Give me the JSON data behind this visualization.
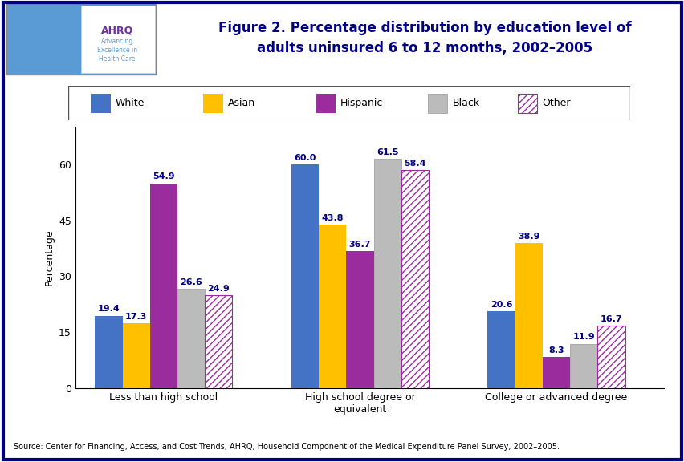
{
  "title": "Figure 2. Percentage distribution by education level of\nadults uninsured 6 to 12 months, 2002–2005",
  "ylabel": "Percentage",
  "source": "Source: Center for Financing, Access, and Cost Trends, AHRQ, Household Component of the Medical Expenditure Panel Survey, 2002–2005.",
  "categories": [
    "Less than high school",
    "High school degree or\nequivalent",
    "College or advanced degree"
  ],
  "groups": [
    "White",
    "Asian",
    "Hispanic",
    "Black",
    "Other"
  ],
  "values": [
    [
      19.4,
      17.3,
      54.9,
      26.6,
      24.9
    ],
    [
      60.0,
      43.8,
      36.7,
      61.5,
      58.4
    ],
    [
      20.6,
      38.9,
      8.3,
      11.9,
      16.7
    ]
  ],
  "colors": [
    "#4472C4",
    "#FFC000",
    "#9B2C9E",
    "#BBBBBB",
    "#FFFFFF"
  ],
  "hatch_colors": [
    "none",
    "none",
    "none",
    "none",
    "#9B2C9E"
  ],
  "hatches": [
    "",
    "",
    "",
    "",
    "////"
  ],
  "bar_edgecolors": [
    "none",
    "none",
    "none",
    "#999999",
    "#9B2C9E"
  ],
  "bar_width": 0.14,
  "ylim": [
    0,
    70
  ],
  "yticks": [
    0,
    15,
    30,
    45,
    60
  ],
  "background_color": "#FFFFFF",
  "border_color": "#000080",
  "title_color": "#000080",
  "title_fontsize": 12,
  "tick_fontsize": 9,
  "value_fontsize": 8,
  "value_color": "#000080",
  "legend_fontsize": 9,
  "ylabel_fontsize": 9,
  "source_fontsize": 7
}
